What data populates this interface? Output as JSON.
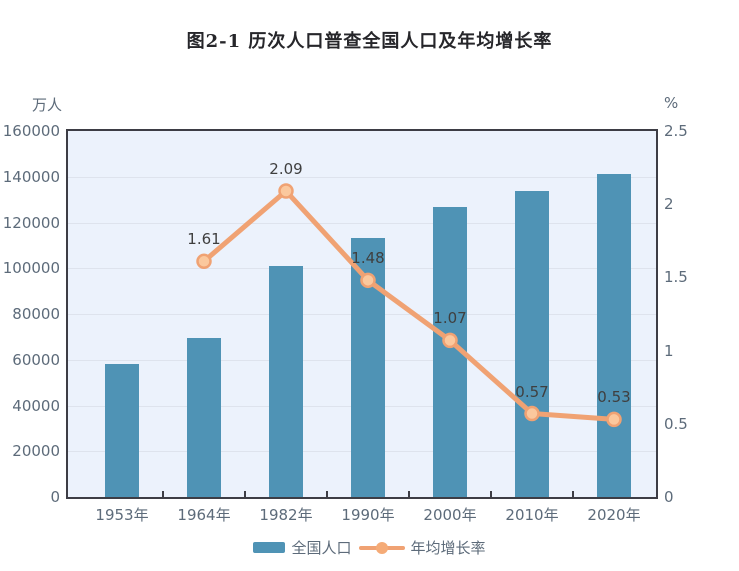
{
  "chart_data": {
    "type": "bar+line",
    "title": "图2-1 历次人口普查全国人口及年均增长率",
    "categories": [
      "1953年",
      "1964年",
      "1982年",
      "1990年",
      "2000年",
      "2010年",
      "2020年"
    ],
    "series": [
      {
        "name": "全国人口",
        "type": "bar",
        "axis": "left",
        "unit": "万人",
        "color": "#4F93B5",
        "values": [
          58260,
          69458,
          100818,
          113368,
          126583,
          133972,
          141178
        ]
      },
      {
        "name": "年均增长率",
        "type": "line",
        "axis": "right",
        "unit": "%",
        "color": "#F0A273",
        "marker_fill": "#FBC89D",
        "values": [
          null,
          1.61,
          2.09,
          1.48,
          1.07,
          0.57,
          0.53
        ],
        "point_labels": [
          "",
          "1.61",
          "2.09",
          "1.48",
          "1.07",
          "0.57",
          "0.53"
        ]
      }
    ],
    "left_axis": {
      "label": "万人",
      "min": 0,
      "max": 160000,
      "step": 20000,
      "ticks": [
        "160000",
        "140000",
        "120000",
        "100000",
        "80000",
        "60000",
        "40000",
        "20000",
        "0"
      ]
    },
    "right_axis": {
      "label": "%",
      "min": 0,
      "max": 2.5,
      "step": 0.5,
      "ticks": [
        "2.5",
        "2",
        "1.5",
        "1",
        "0.5",
        "0"
      ]
    },
    "grid": true,
    "legend_position": "bottom",
    "plot_bg": "#ECF2FC",
    "colors": {
      "bar": "#4F93B5",
      "line": "#F0A273",
      "marker_fill": "#FBC89D",
      "grid": "#DEE3ED",
      "border": "#3D3D45",
      "axis_text": "#5D6B7A",
      "label_text": "#3F3F3F"
    }
  }
}
